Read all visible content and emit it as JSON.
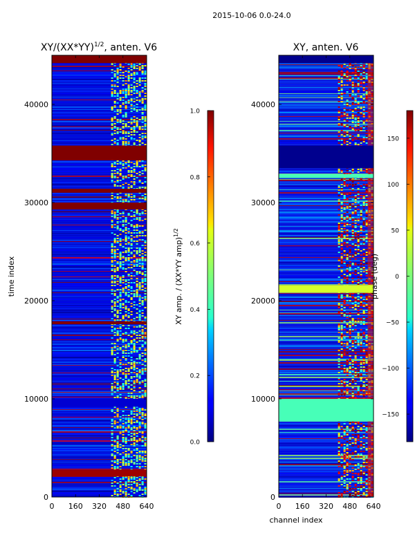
{
  "figure": {
    "suptitle": "2015-10-06 0.0-24.0"
  },
  "chart_data": [
    {
      "type": "heatmap",
      "title": "XY/(XX*YY)",
      "title_sup": "1/2",
      "title_suffix": ", anten. V6",
      "xlabel": "",
      "ylabel": "time index",
      "xlim": [
        0,
        640
      ],
      "ylim": [
        0,
        45000
      ],
      "xticks": [
        0,
        160,
        320,
        480,
        640
      ],
      "yticks": [
        0,
        10000,
        20000,
        30000,
        40000
      ],
      "colorbar": {
        "label": "XY amp. / (XX*YY amp)",
        "label_sup": "1/2",
        "range": [
          0.0,
          1.0
        ],
        "ticks": [
          "0.0",
          "0.2",
          "0.4",
          "0.6",
          "0.8",
          "1.0"
        ],
        "colormap": "jet"
      },
      "bands": [
        {
          "t0": 34300,
          "t1": 35800,
          "value": 1.0
        },
        {
          "t0": 44200,
          "t1": 45000,
          "value": 1.0
        },
        {
          "t0": 29300,
          "t1": 30000,
          "value": 1.0
        },
        {
          "t0": 31000,
          "t1": 31400,
          "value": 1.0
        },
        {
          "t0": 17600,
          "t1": 17900,
          "value": 1.0
        },
        {
          "t0": 2100,
          "t1": 2800,
          "value": 0.97
        },
        {
          "t0": 9200,
          "t1": 10000,
          "value": 0.08
        }
      ]
    },
    {
      "type": "heatmap",
      "title": "XY, anten. V6",
      "xlabel": "channel index",
      "ylabel": "",
      "xlim": [
        0,
        640
      ],
      "ylim": [
        0,
        45000
      ],
      "xticks": [
        0,
        160,
        320,
        480,
        640
      ],
      "yticks": [
        0,
        10000,
        20000,
        30000,
        40000
      ],
      "colorbar": {
        "label": "phase (deg)",
        "range": [
          -180,
          180
        ],
        "ticks": [
          "−150",
          "−100",
          "−50",
          "0",
          "50",
          "100",
          "150"
        ],
        "tick_values": [
          -150,
          -100,
          -50,
          0,
          50,
          100,
          150
        ],
        "colormap": "jet"
      },
      "bands": [
        {
          "t0": 33500,
          "t1": 35800,
          "value": -175
        },
        {
          "t0": 7700,
          "t1": 10000,
          "value": -20
        },
        {
          "t0": 20800,
          "t1": 21600,
          "value": 30
        },
        {
          "t0": 32500,
          "t1": 32900,
          "value": -20
        },
        {
          "t0": 44200,
          "t1": 45000,
          "value": -175
        }
      ]
    }
  ]
}
